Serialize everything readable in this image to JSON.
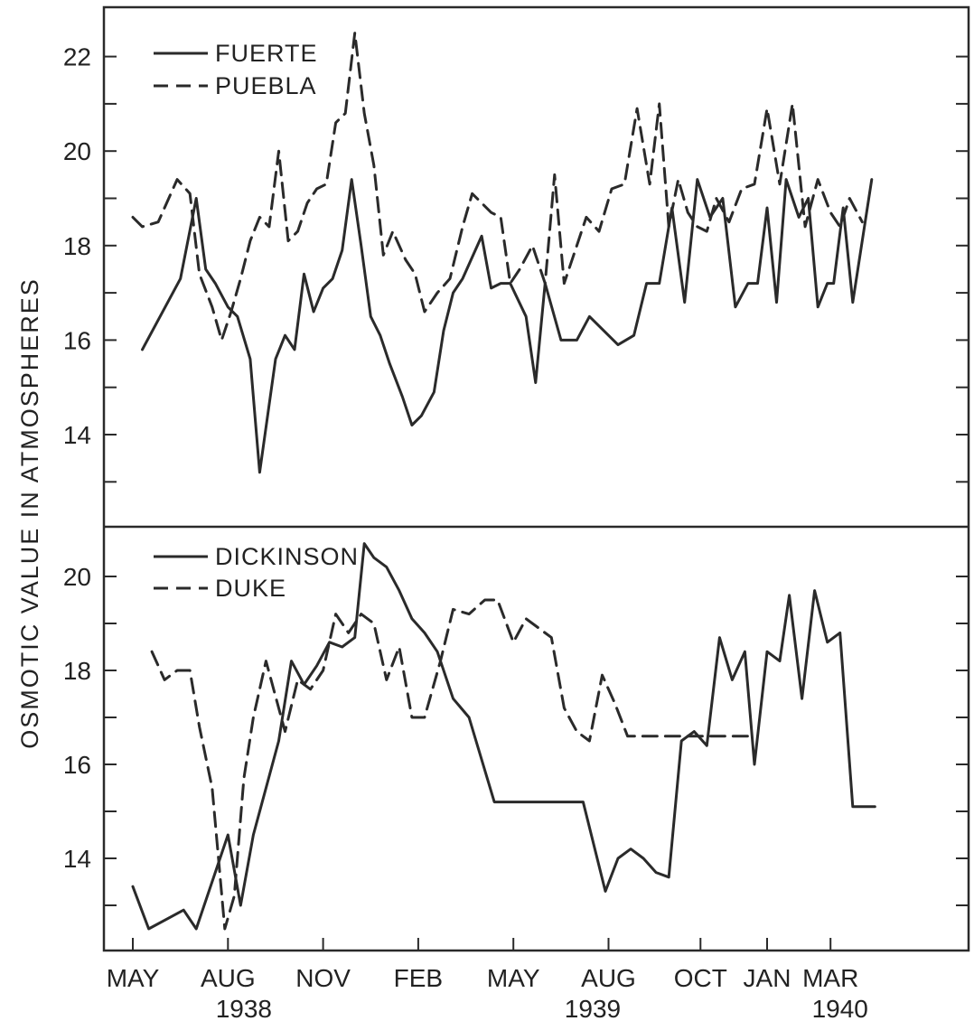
{
  "chart_data": [
    {
      "type": "line",
      "ylabel": "OSMOTIC VALUE IN ATMOSPHERES",
      "ylim": [
        11,
        23.5
      ],
      "yticks": [
        14,
        16,
        18,
        20,
        22
      ],
      "legend_position": "top-left",
      "x_tick_labels": [
        "MAY",
        "AUG",
        "NOV",
        "FEB",
        "MAY",
        "AUG",
        "OCT",
        "JAN",
        "MAR"
      ],
      "x_tick_months": [
        0,
        3,
        6,
        9,
        12,
        15,
        17.9,
        20,
        22
      ],
      "year_labels": [
        "1938",
        "1939",
        "1940"
      ],
      "year_label_months": [
        3.5,
        14.5,
        22.3
      ],
      "series": [
        {
          "name": "FUERTE",
          "style": "solid",
          "x": [
            0.3,
            1.5,
            2.0,
            2.3,
            2.6,
            3.0,
            3.3,
            3.7,
            4.0,
            4.5,
            4.8,
            5.1,
            5.4,
            5.7,
            6.0,
            6.3,
            6.6,
            6.9,
            7.2,
            7.5,
            7.8,
            8.1,
            8.5,
            8.8,
            9.1,
            9.5,
            9.8,
            10.1,
            10.4,
            11.0,
            11.3,
            11.6,
            11.9,
            12.4,
            12.7,
            13.0,
            13.5,
            14.0,
            14.4,
            15.0,
            15.3,
            15.8,
            16.2,
            16.6,
            17.0,
            17.4,
            17.8,
            18.2,
            18.6,
            19.0,
            19.4,
            19.7,
            20.0,
            20.3,
            20.6,
            21.0,
            21.3,
            21.6,
            21.9,
            22.1,
            22.4,
            22.7,
            23.3
          ],
          "y": [
            15.8,
            17.3,
            19.0,
            17.5,
            17.2,
            16.7,
            16.5,
            15.6,
            13.2,
            15.6,
            16.1,
            15.8,
            17.4,
            16.6,
            17.1,
            17.3,
            17.9,
            19.4,
            18.0,
            16.5,
            16.1,
            15.5,
            14.8,
            14.2,
            14.4,
            14.9,
            16.2,
            17.0,
            17.3,
            18.2,
            17.1,
            17.2,
            17.2,
            16.5,
            15.1,
            17.2,
            16.0,
            16.0,
            16.5,
            16.1,
            15.9,
            16.1,
            17.2,
            17.2,
            18.8,
            16.8,
            19.4,
            18.6,
            19.0,
            16.7,
            17.2,
            17.2,
            18.8,
            16.8,
            19.4,
            18.6,
            19.0,
            16.7,
            17.2,
            17.2,
            18.8,
            16.8,
            19.4
          ]
        },
        {
          "name": "PUEBLA",
          "style": "dashed",
          "x": [
            0.0,
            0.3,
            0.8,
            1.4,
            1.8,
            2.1,
            2.5,
            2.8,
            3.1,
            3.4,
            3.7,
            4.0,
            4.3,
            4.6,
            4.9,
            5.2,
            5.5,
            5.8,
            6.1,
            6.4,
            6.7,
            7.0,
            7.3,
            7.6,
            7.9,
            8.2,
            8.6,
            8.9,
            9.2,
            9.6,
            10.0,
            10.4,
            10.7,
            11.0,
            11.3,
            11.6,
            11.9,
            12.2,
            12.6,
            13.0,
            13.3,
            13.6,
            13.9,
            14.3,
            14.7,
            15.1,
            15.5,
            15.9,
            16.3,
            16.6,
            16.9,
            17.2,
            17.5,
            17.8,
            18.1,
            18.4,
            18.8,
            19.2,
            19.6,
            20.0,
            20.4,
            20.8,
            21.2,
            21.6,
            22.0,
            22.3,
            22.6,
            23.0
          ],
          "y": [
            18.6,
            18.4,
            18.5,
            19.4,
            19.1,
            17.4,
            16.7,
            16.0,
            16.6,
            17.3,
            18.1,
            18.6,
            18.4,
            20.0,
            18.1,
            18.3,
            18.9,
            19.2,
            19.3,
            20.6,
            20.8,
            22.5,
            20.8,
            19.7,
            17.8,
            18.3,
            17.7,
            17.4,
            16.6,
            17.0,
            17.3,
            18.4,
            19.1,
            18.9,
            18.7,
            18.6,
            17.2,
            17.5,
            18.0,
            17.2,
            19.5,
            17.2,
            17.8,
            18.6,
            18.3,
            19.2,
            19.3,
            20.9,
            19.3,
            21.0,
            18.4,
            19.4,
            18.7,
            18.4,
            18.3,
            19.0,
            18.5,
            19.2,
            19.3,
            20.9,
            19.3,
            21.0,
            18.4,
            19.4,
            18.7,
            18.4,
            19.0,
            18.5
          ]
        }
      ]
    },
    {
      "type": "line",
      "ylabel": "OSMOTIC VALUE IN ATMOSPHERES",
      "ylim": [
        12.0,
        21.2
      ],
      "yticks": [
        14,
        16,
        18,
        20
      ],
      "legend_position": "top-left",
      "series": [
        {
          "name": "DICKINSON",
          "style": "solid",
          "x": [
            0.0,
            0.5,
            1.6,
            2.0,
            3.0,
            3.4,
            3.8,
            4.6,
            5.0,
            5.4,
            5.8,
            6.2,
            6.6,
            7.0,
            7.3,
            7.6,
            8.0,
            8.4,
            8.8,
            9.2,
            9.6,
            10.1,
            10.6,
            11.4,
            14.2,
            14.9,
            15.3,
            15.7,
            16.1,
            16.5,
            16.9,
            17.3,
            17.7,
            18.1,
            18.5,
            18.9,
            19.3,
            19.6,
            20.0,
            20.4,
            20.7,
            21.1,
            21.5,
            21.9,
            22.3,
            22.7,
            23.0,
            23.4
          ],
          "y": [
            13.4,
            12.5,
            12.9,
            12.5,
            14.5,
            13.0,
            14.5,
            16.5,
            18.2,
            17.7,
            18.1,
            18.6,
            18.5,
            18.7,
            20.7,
            20.4,
            20.2,
            19.7,
            19.1,
            18.8,
            18.4,
            17.4,
            17.0,
            15.2,
            15.2,
            13.3,
            14.0,
            14.2,
            14.0,
            13.7,
            13.6,
            16.5,
            16.7,
            16.4,
            18.7,
            17.8,
            18.4,
            16.0,
            18.4,
            18.2,
            19.6,
            17.4,
            19.7,
            18.6,
            18.8,
            15.1,
            15.1,
            15.1
          ]
        },
        {
          "name": "DUKE",
          "style": "dashed",
          "x": [
            0.6,
            1.0,
            1.4,
            1.8,
            2.1,
            2.5,
            2.9,
            3.2,
            3.5,
            3.8,
            4.2,
            4.8,
            5.2,
            5.6,
            6.0,
            6.4,
            6.8,
            7.2,
            7.6,
            8.0,
            8.4,
            8.8,
            9.2,
            9.7,
            10.1,
            10.6,
            11.1,
            11.5,
            12.0,
            12.4,
            12.8,
            13.2,
            13.6,
            14.0,
            14.4,
            14.8,
            15.2,
            15.6,
            16.0,
            16.4,
            16.8,
            17.2,
            17.6,
            18.0,
            18.4,
            18.8,
            19.2,
            19.6
          ],
          "y": [
            18.4,
            17.8,
            18.0,
            18.0,
            16.8,
            15.5,
            12.5,
            13.2,
            15.7,
            17.0,
            18.2,
            16.7,
            17.8,
            17.6,
            18.0,
            19.2,
            18.8,
            19.2,
            19.0,
            17.8,
            18.5,
            17.0,
            17.0,
            18.2,
            19.3,
            19.2,
            19.5,
            19.5,
            18.6,
            19.1,
            18.9,
            18.7,
            17.2,
            16.7,
            16.5,
            17.9,
            17.3,
            16.6,
            16.6,
            16.6,
            16.6,
            16.6,
            16.6,
            16.6,
            16.6,
            16.6,
            16.6,
            16.6
          ]
        }
      ]
    }
  ]
}
